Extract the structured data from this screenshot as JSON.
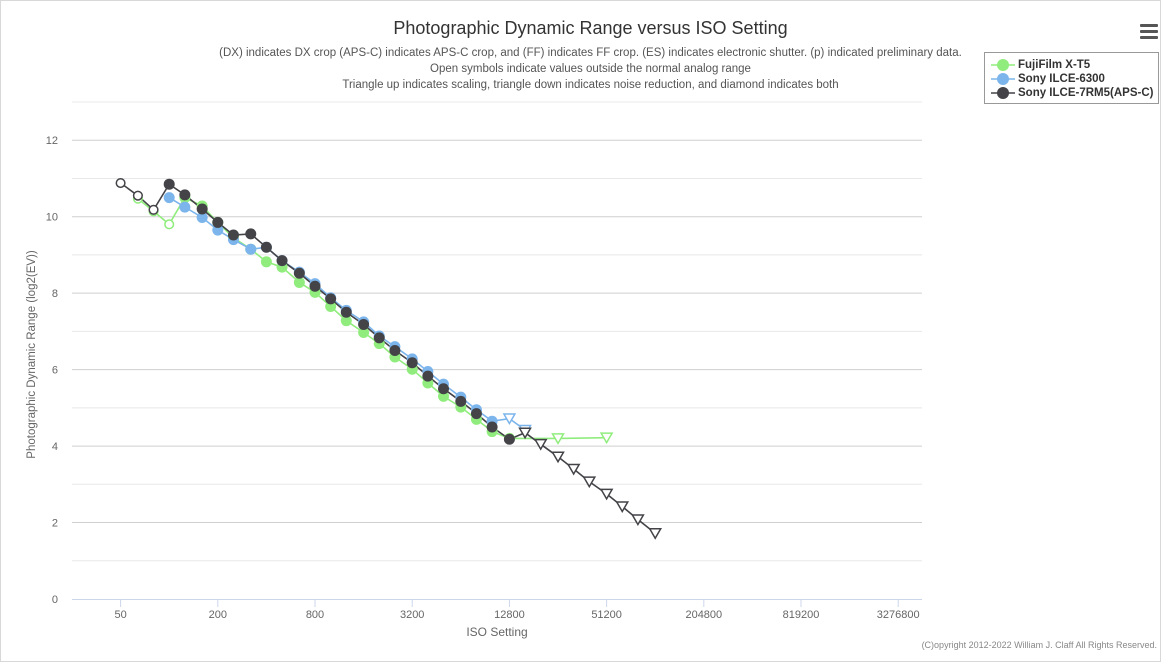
{
  "chart_data": {
    "type": "line",
    "title": "Photographic Dynamic Range versus ISO Setting",
    "subtitles": [
      "(DX) indicates DX crop (APS-C) indicates APS-C crop, and (FF) indicates FF crop. (ES) indicates electronic shutter. (p) indicated preliminary data.",
      "Open symbols indicate values outside the normal analog range",
      "Triangle up indicates scaling, triangle down indicates noise reduction, and diamond indicates both"
    ],
    "xlabel": "ISO Setting",
    "ylabel": "Photographic Dynamic Range (log2(EV))",
    "x_scale": "log",
    "x_ticks": [
      50,
      200,
      800,
      3200,
      12800,
      51200,
      204800,
      819200,
      3276800
    ],
    "x_range": [
      25,
      4600000
    ],
    "y_ticks": [
      0,
      2,
      4,
      6,
      8,
      10,
      12
    ],
    "ylim": [
      0,
      13
    ],
    "grid": true,
    "legend_position": "top-right",
    "series": [
      {
        "name": "FujiFilm X-T5",
        "color": "#90ed7d",
        "points": [
          {
            "x": 64,
            "y": 10.47,
            "m": "circle",
            "open": true
          },
          {
            "x": 80,
            "y": 10.14,
            "m": "circle",
            "open": true
          },
          {
            "x": 100,
            "y": 9.8,
            "m": "circle",
            "open": true
          },
          {
            "x": 125,
            "y": 10.5,
            "m": "circle"
          },
          {
            "x": 160,
            "y": 10.28,
            "m": "circle"
          },
          {
            "x": 200,
            "y": 9.85,
            "m": "circle"
          },
          {
            "x": 250,
            "y": 9.45,
            "m": "circle"
          },
          {
            "x": 320,
            "y": 9.15,
            "m": "circle"
          },
          {
            "x": 400,
            "y": 8.82,
            "m": "circle"
          },
          {
            "x": 500,
            "y": 8.68,
            "m": "circle"
          },
          {
            "x": 640,
            "y": 8.28,
            "m": "circle"
          },
          {
            "x": 800,
            "y": 8.02,
            "m": "circle"
          },
          {
            "x": 1000,
            "y": 7.65,
            "m": "circle"
          },
          {
            "x": 1250,
            "y": 7.28,
            "m": "circle"
          },
          {
            "x": 1600,
            "y": 6.97,
            "m": "circle"
          },
          {
            "x": 2000,
            "y": 6.68,
            "m": "circle"
          },
          {
            "x": 2500,
            "y": 6.33,
            "m": "circle"
          },
          {
            "x": 3200,
            "y": 6.01,
            "m": "circle"
          },
          {
            "x": 4000,
            "y": 5.65,
            "m": "circle"
          },
          {
            "x": 5000,
            "y": 5.3,
            "m": "circle"
          },
          {
            "x": 6400,
            "y": 5.02,
            "m": "circle"
          },
          {
            "x": 8000,
            "y": 4.7,
            "m": "circle"
          },
          {
            "x": 10000,
            "y": 4.38,
            "m": "circle"
          },
          {
            "x": 12800,
            "y": 4.2,
            "m": "circle"
          },
          {
            "x": 25600,
            "y": 4.2,
            "m": "triangle-down",
            "open": true
          },
          {
            "x": 51200,
            "y": 4.22,
            "m": "triangle-down",
            "open": true
          }
        ]
      },
      {
        "name": "Sony ILCE-6300",
        "color": "#7cb5ec",
        "points": [
          {
            "x": 100,
            "y": 10.5,
            "m": "circle"
          },
          {
            "x": 125,
            "y": 10.25,
            "m": "circle"
          },
          {
            "x": 160,
            "y": 9.98,
            "m": "circle"
          },
          {
            "x": 200,
            "y": 9.65,
            "m": "circle"
          },
          {
            "x": 250,
            "y": 9.4,
            "m": "circle"
          },
          {
            "x": 320,
            "y": 9.15,
            "m": "circle"
          },
          {
            "x": 400,
            "y": 9.2,
            "m": "circle"
          },
          {
            "x": 500,
            "y": 8.85,
            "m": "circle"
          },
          {
            "x": 640,
            "y": 8.55,
            "m": "circle"
          },
          {
            "x": 800,
            "y": 8.25,
            "m": "circle"
          },
          {
            "x": 1000,
            "y": 7.88,
            "m": "circle"
          },
          {
            "x": 1250,
            "y": 7.55,
            "m": "circle"
          },
          {
            "x": 1600,
            "y": 7.25,
            "m": "circle"
          },
          {
            "x": 2000,
            "y": 6.88,
            "m": "circle"
          },
          {
            "x": 2500,
            "y": 6.6,
            "m": "circle"
          },
          {
            "x": 3200,
            "y": 6.28,
            "m": "circle"
          },
          {
            "x": 4000,
            "y": 5.95,
            "m": "circle"
          },
          {
            "x": 5000,
            "y": 5.62,
            "m": "circle"
          },
          {
            "x": 6400,
            "y": 5.28,
            "m": "circle"
          },
          {
            "x": 8000,
            "y": 4.95,
            "m": "circle"
          },
          {
            "x": 10000,
            "y": 4.65,
            "m": "circle"
          },
          {
            "x": 12800,
            "y": 4.72,
            "m": "triangle-down",
            "open": true
          },
          {
            "x": 16000,
            "y": 4.42,
            "m": "triangle-down",
            "open": true
          }
        ]
      },
      {
        "name": "Sony ILCE-7RM5(APS-C)",
        "color": "#434348",
        "points": [
          {
            "x": 50,
            "y": 10.88,
            "m": "circle",
            "open": true
          },
          {
            "x": 64,
            "y": 10.55,
            "m": "circle",
            "open": true
          },
          {
            "x": 80,
            "y": 10.18,
            "m": "circle",
            "open": true
          },
          {
            "x": 100,
            "y": 10.85,
            "m": "circle"
          },
          {
            "x": 125,
            "y": 10.57,
            "m": "circle"
          },
          {
            "x": 160,
            "y": 10.2,
            "m": "circle"
          },
          {
            "x": 200,
            "y": 9.85,
            "m": "circle"
          },
          {
            "x": 250,
            "y": 9.52,
            "m": "circle"
          },
          {
            "x": 320,
            "y": 9.55,
            "m": "circle"
          },
          {
            "x": 400,
            "y": 9.2,
            "m": "circle"
          },
          {
            "x": 500,
            "y": 8.85,
            "m": "circle"
          },
          {
            "x": 640,
            "y": 8.52,
            "m": "circle"
          },
          {
            "x": 800,
            "y": 8.18,
            "m": "circle"
          },
          {
            "x": 1000,
            "y": 7.85,
            "m": "circle"
          },
          {
            "x": 1250,
            "y": 7.5,
            "m": "circle"
          },
          {
            "x": 1600,
            "y": 7.18,
            "m": "circle"
          },
          {
            "x": 2000,
            "y": 6.83,
            "m": "circle"
          },
          {
            "x": 2500,
            "y": 6.5,
            "m": "circle"
          },
          {
            "x": 3200,
            "y": 6.18,
            "m": "circle"
          },
          {
            "x": 4000,
            "y": 5.83,
            "m": "circle"
          },
          {
            "x": 5000,
            "y": 5.5,
            "m": "circle"
          },
          {
            "x": 6400,
            "y": 5.17,
            "m": "circle"
          },
          {
            "x": 8000,
            "y": 4.85,
            "m": "circle"
          },
          {
            "x": 10000,
            "y": 4.5,
            "m": "circle"
          },
          {
            "x": 12800,
            "y": 4.18,
            "m": "circle"
          },
          {
            "x": 16000,
            "y": 4.35,
            "m": "triangle-down",
            "open": true
          },
          {
            "x": 20000,
            "y": 4.05,
            "m": "triangle-down",
            "open": true
          },
          {
            "x": 25600,
            "y": 3.72,
            "m": "triangle-down",
            "open": true
          },
          {
            "x": 32000,
            "y": 3.4,
            "m": "triangle-down",
            "open": true
          },
          {
            "x": 40000,
            "y": 3.07,
            "m": "triangle-down",
            "open": true
          },
          {
            "x": 51200,
            "y": 2.75,
            "m": "triangle-down",
            "open": true
          },
          {
            "x": 64000,
            "y": 2.42,
            "m": "triangle-down",
            "open": true
          },
          {
            "x": 80000,
            "y": 2.08,
            "m": "triangle-down",
            "open": true
          },
          {
            "x": 102400,
            "y": 1.72,
            "m": "triangle-down",
            "open": true
          }
        ]
      }
    ]
  },
  "menu": {
    "icon": "hamburger-menu-icon"
  },
  "copyright": "(C)opyright 2012-2022 William J. Claff All Rights Reserved."
}
